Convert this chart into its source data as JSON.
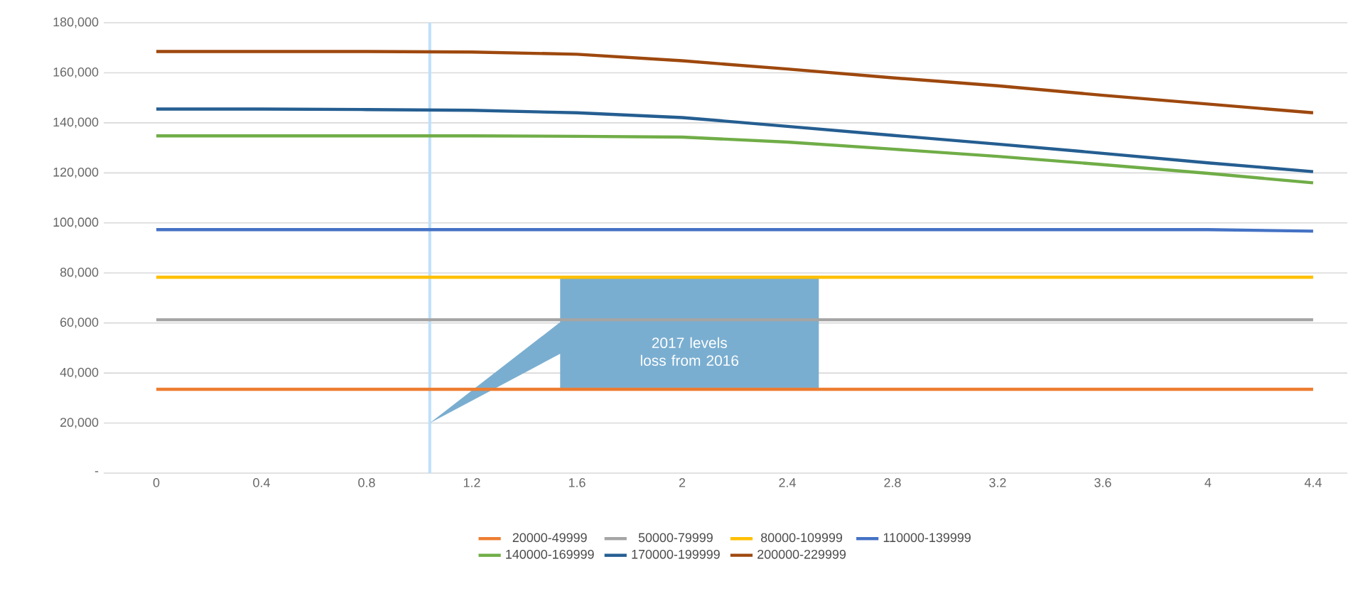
{
  "chart_data": {
    "type": "line",
    "x": [
      0,
      0.4,
      0.8,
      1.2,
      1.6,
      2,
      2.4,
      2.8,
      3.2,
      3.6,
      4,
      4.4
    ],
    "series": [
      {
        "name": "20000-49999",
        "color": "#ed7d31",
        "values": [
          33500,
          33500,
          33500,
          33500,
          33500,
          33500,
          33500,
          33500,
          33500,
          33500,
          33500,
          33500
        ]
      },
      {
        "name": "50000-79999",
        "color": "#a5a5a5",
        "values": [
          61300,
          61300,
          61300,
          61300,
          61300,
          61300,
          61300,
          61300,
          61300,
          61300,
          61300,
          61300
        ]
      },
      {
        "name": "80000-109999",
        "color": "#ffc000",
        "values": [
          78300,
          78300,
          78300,
          78300,
          78300,
          78300,
          78300,
          78300,
          78300,
          78300,
          78300,
          78300
        ]
      },
      {
        "name": "110000-139999",
        "color": "#4472c4",
        "values": [
          97300,
          97300,
          97300,
          97300,
          97300,
          97300,
          97300,
          97300,
          97300,
          97300,
          97300,
          96700
        ]
      },
      {
        "name": "140000-169999",
        "color": "#70ad47",
        "values": [
          134800,
          134800,
          134800,
          134800,
          134600,
          134300,
          132300,
          129500,
          126600,
          123300,
          119800,
          116000
        ]
      },
      {
        "name": "170000-199999",
        "color": "#255e91",
        "values": [
          145500,
          145500,
          145300,
          145000,
          144000,
          142100,
          138600,
          135000,
          131500,
          127800,
          124000,
          120500
        ]
      },
      {
        "name": "200000-229999",
        "color": "#9e480e",
        "values": [
          168500,
          168500,
          168500,
          168300,
          167400,
          164800,
          161500,
          158000,
          154800,
          151000,
          147500,
          144000
        ]
      }
    ],
    "xlim": [
      -0.2,
      4.53
    ],
    "xticks": [
      0,
      0.4,
      0.8,
      1.2,
      1.6,
      2,
      2.4,
      2.8,
      3.2,
      3.6,
      4,
      4.4
    ],
    "ylim": [
      0,
      180000
    ],
    "yticks": [
      {
        "value": 0,
        "label": "-"
      },
      {
        "value": 20000,
        "label": "20,000"
      },
      {
        "value": 40000,
        "label": "40,000"
      },
      {
        "value": 60000,
        "label": "60,000"
      },
      {
        "value": 80000,
        "label": "80,000"
      },
      {
        "value": 100000,
        "label": "100,000"
      },
      {
        "value": 120000,
        "label": "120,000"
      },
      {
        "value": 140000,
        "label": "140,000"
      },
      {
        "value": 160000,
        "label": "160,000"
      },
      {
        "value": 180000,
        "label": "180,000"
      }
    ],
    "ref_lines": [
      {
        "axis": "x",
        "value": 1.04,
        "color": "#bde0fb"
      }
    ],
    "annotations": [
      "2017 levels loss from 2016"
    ],
    "grid": "y",
    "legend": "bottom",
    "marker": "none",
    "line_style": "solid"
  }
}
